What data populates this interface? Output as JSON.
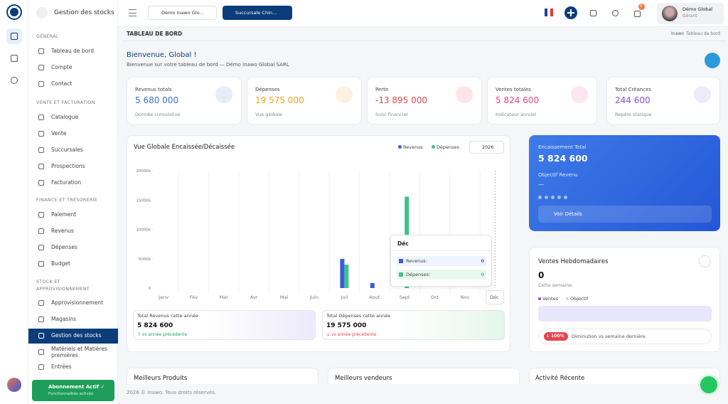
{
  "brand": "Gestion des stocks",
  "sidebar": {
    "sections": [
      {
        "title": "GÉNÉRAL",
        "items": [
          "Tableau de bord",
          "Compte",
          "Contact"
        ]
      },
      {
        "title": "VENTE ET FACTURATION",
        "items": [
          "Catalogue",
          "Vente",
          "Succursales",
          "Prospections",
          "Facturation"
        ]
      },
      {
        "title": "FINANCE ET TRÉSORERIE",
        "items": [
          "Paiement",
          "Revenus",
          "Dépenses",
          "Budget"
        ]
      },
      {
        "title": "STOCK ET APPROVISIONNEMENT",
        "items": [
          "Approvisionnement",
          "Magasins",
          "Gestion des stocks",
          "Matériels et Matières premières",
          "Entrées"
        ]
      }
    ],
    "active": "Gestion des stocks",
    "subscription": {
      "title": "Abonnement Actif ✓",
      "subtitle": "Fonctionnalités actives"
    }
  },
  "topbar": {
    "company": "Démo Inawo Glo...",
    "branch": "Succursale Chin...",
    "notifications": "0",
    "user": {
      "name": "Démo Global",
      "role": "Gérant"
    }
  },
  "page": {
    "title": "TABLEAU DE BORD",
    "breadcrumb": [
      "Inawo",
      "Tableau de bord"
    ],
    "welcome": "Bienvenue, Global !",
    "subtitle": "Bienvenue sur votre tableau de bord — Démo Inawo Global SARL"
  },
  "kpis": [
    {
      "label": "Revenus totals",
      "value": "5 680 000",
      "note": "Donnée cumulative",
      "color": "#3b6fe0"
    },
    {
      "label": "Dépenses",
      "value": "19 575 000",
      "note": "Vue globale",
      "color": "#f0a020"
    },
    {
      "label": "Perte",
      "value": "-13 895 000",
      "note": "Suivi financier",
      "color": "#e8454f"
    },
    {
      "label": "Ventes totales",
      "value": "5 824 600",
      "note": "Indicateur annuel",
      "color": "#e2458e"
    },
    {
      "label": "Total Créances",
      "value": "244 600",
      "note": "Repère statique",
      "color": "#8a4fe0"
    }
  ],
  "chart_data": {
    "type": "bar",
    "title": "Vue Globale Encaissée/Décaissée",
    "year": "2026",
    "categories": [
      "Janv",
      "Fév",
      "Mar",
      "Avr",
      "Mai",
      "Juin",
      "Juil",
      "Aout",
      "Sept",
      "Oct",
      "Nov",
      "Déc"
    ],
    "series": [
      {
        "name": "Revenus",
        "color": "#3b5bdb",
        "values": [
          0,
          0,
          0,
          0,
          0,
          0,
          4975,
          850,
          0,
          0,
          0,
          0
        ]
      },
      {
        "name": "Dépenses",
        "color": "#3cc38a",
        "values": [
          0,
          0,
          0,
          0,
          0,
          0,
          4000,
          0,
          15575,
          0,
          0,
          0
        ]
      }
    ],
    "ylim": [
      0,
      20000
    ],
    "yticks": [
      0,
      {
        "value": 5000,
        "label": "5000k"
      },
      {
        "value": 10000,
        "label": "10000k"
      },
      {
        "value": 15000,
        "label": "15000k"
      },
      {
        "value": 20000,
        "label": "20000k"
      }
    ],
    "tooltip": {
      "title": "Déc",
      "rows": [
        {
          "label": "Revenus:",
          "value": "0"
        },
        {
          "label": "Dépenses:",
          "value": "0"
        }
      ]
    },
    "summary": [
      {
        "label": "Total Revenus cette année",
        "value": "5 824 600",
        "note": "↑ vs année précédente"
      },
      {
        "label": "Total Dépenses cette année",
        "value": "19 575 000",
        "note": "↓ vs année précédente"
      }
    ]
  },
  "encaissement": {
    "label": "Encaissement Total",
    "value": "5 824 600",
    "goal": "Objectif Revenu",
    "goal_value": "—",
    "button": "Voir Détails"
  },
  "weekly": {
    "title": "Ventes Hebdomadaires",
    "value": "0",
    "note": "Cette semaine",
    "legend": [
      "Ventes",
      "Objectif"
    ],
    "badge": "↓ 100%",
    "badge_note": "Diminution vs semaine dernière"
  },
  "bottom": [
    "Meilleurs Produits",
    "Meilleurs vendeurs",
    "Activité Récente"
  ],
  "footer": "2026 © Inawo. Tous droits réservés."
}
